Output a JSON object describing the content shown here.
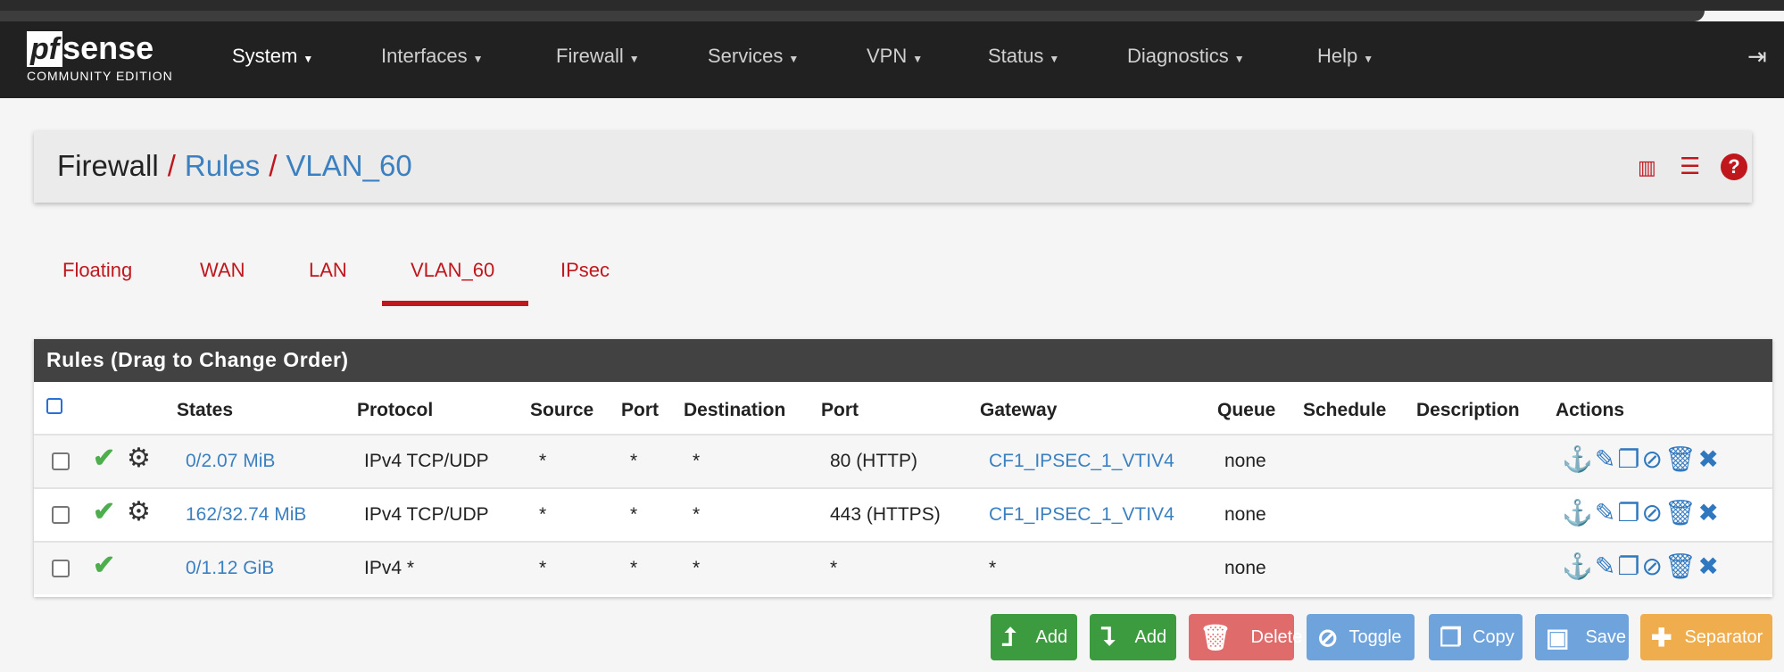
{
  "nav": {
    "logo": {
      "brand": "pfsense",
      "edition": "COMMUNITY EDITION"
    },
    "items": [
      "System",
      "Interfaces",
      "Firewall",
      "Services",
      "VPN",
      "Status",
      "Diagnostics",
      "Help"
    ],
    "logout_icon": "sign-out-icon"
  },
  "breadcrumb": {
    "items": [
      "Firewall",
      "Rules",
      "VLAN_60"
    ],
    "icons": [
      "bar-chart-icon",
      "list-icon",
      "help-icon"
    ]
  },
  "tabs": {
    "items": [
      "Floating",
      "WAN",
      "LAN",
      "VLAN_60",
      "IPsec"
    ],
    "active": "VLAN_60"
  },
  "panel": {
    "title": "Rules (Drag to Change Order)",
    "columns": [
      "States",
      "Protocol",
      "Source",
      "Port",
      "Destination",
      "Port",
      "Gateway",
      "Queue",
      "Schedule",
      "Description",
      "Actions"
    ],
    "rows": [
      {
        "states": "0/2.07 MiB",
        "protocol": "IPv4 TCP/UDP",
        "source": "*",
        "port": "*",
        "destination": "*",
        "dport": "80 (HTTP)",
        "gateway": "CF1_IPSEC_1_VTIV4",
        "queue": "none",
        "schedule": "",
        "description": "",
        "advanced": true
      },
      {
        "states": "162/32.74 MiB",
        "protocol": "IPv4 TCP/UDP",
        "source": "*",
        "port": "*",
        "destination": "*",
        "dport": "443 (HTTPS)",
        "gateway": "CF1_IPSEC_1_VTIV4",
        "queue": "none",
        "schedule": "",
        "description": "",
        "advanced": true
      },
      {
        "states": "0/1.12 GiB",
        "protocol": "IPv4 *",
        "source": "*",
        "port": "*",
        "destination": "*",
        "dport": "*",
        "gateway": "*",
        "queue": "none",
        "schedule": "",
        "description": "",
        "advanced": false
      }
    ]
  },
  "buttons": {
    "add_top": "Add",
    "add_bottom": "Add",
    "delete": "Delete",
    "toggle": "Toggle",
    "copy": "Copy",
    "save": "Save",
    "separator": "Separator"
  },
  "colors": {
    "accent_red": "#c0171d",
    "link_blue": "#3b80c0",
    "success": "#3d9b3f",
    "danger": "#df6b6b",
    "info": "#6fa3dc",
    "warning": "#f0ad4e"
  }
}
